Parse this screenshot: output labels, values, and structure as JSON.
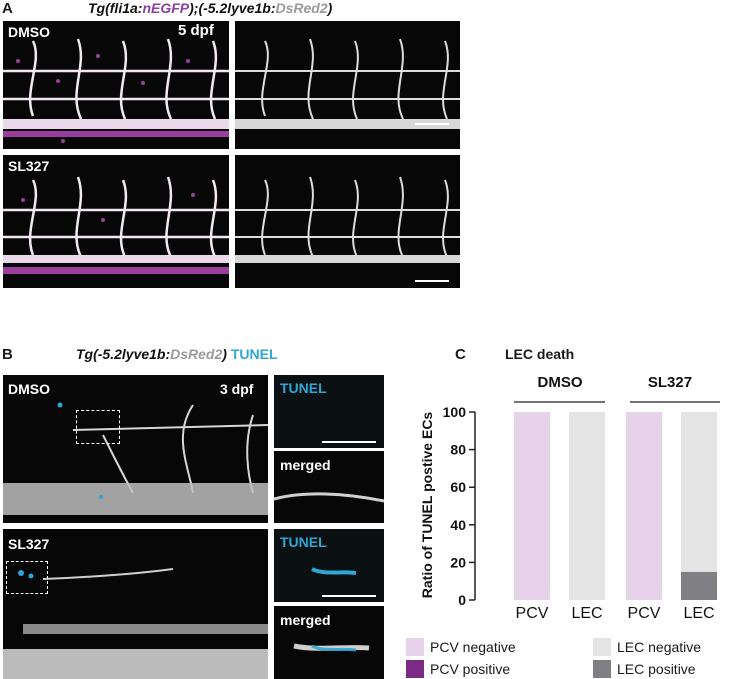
{
  "panel_a": {
    "letter": "A",
    "tg_prefix": "Tg(fli1a:",
    "tg_nEGFP": "nEGFP",
    "tg_mid": ");(-5.2lyve1b:",
    "tg_dsred": "DsRed2",
    "tg_suffix": ")",
    "row1_label": "DMSO",
    "stage": "5 dpf",
    "row2_label": "SL327"
  },
  "panel_b": {
    "letter": "B",
    "tg_prefix": "Tg(-5.2lyve1b:",
    "tg_dsred": "DsRed2",
    "tg_suffix": ")",
    "tunel_title": "TUNEL",
    "row1_label": "DMSO",
    "stage": "3 dpf",
    "row2_label": "SL327",
    "inset_tunel": "TUNEL",
    "inset_merged": "merged"
  },
  "panel_c": {
    "letter": "C",
    "title": "LEC death",
    "group1": "DMSO",
    "group2": "SL327",
    "ylabel": "Ratio of TUNEL postive ECs",
    "colors": {
      "pcv_negative": "#e6d2e9",
      "pcv_positive": "#7b2a86",
      "lec_negative": "#e4e4e4",
      "lec_positive": "#808084"
    },
    "legend": [
      {
        "label": "PCV negative",
        "color_key": "pcv_negative"
      },
      {
        "label": "LEC negative",
        "color_key": "lec_negative"
      },
      {
        "label": "PCV positive",
        "color_key": "pcv_positive"
      },
      {
        "label": "LEC positive",
        "color_key": "lec_positive"
      }
    ]
  },
  "chart_data": {
    "type": "bar",
    "stacked": true,
    "categories": [
      "PCV",
      "LEC",
      "PCV",
      "LEC"
    ],
    "groups": [
      "DMSO",
      "DMSO",
      "SL327",
      "SL327"
    ],
    "series": [
      {
        "name": "PCV negative",
        "values": [
          100,
          0,
          100,
          0
        ]
      },
      {
        "name": "PCV positive",
        "values": [
          0,
          0,
          0,
          0
        ]
      },
      {
        "name": "LEC negative",
        "values": [
          0,
          100,
          0,
          85
        ]
      },
      {
        "name": "LEC positive",
        "values": [
          0,
          0,
          0,
          15
        ]
      }
    ],
    "title": "LEC death",
    "ylabel": "Ratio of TUNEL postive ECs",
    "ylim": [
      0,
      100
    ],
    "yticks": [
      0,
      20,
      40,
      60,
      80,
      100
    ],
    "grid": false
  }
}
